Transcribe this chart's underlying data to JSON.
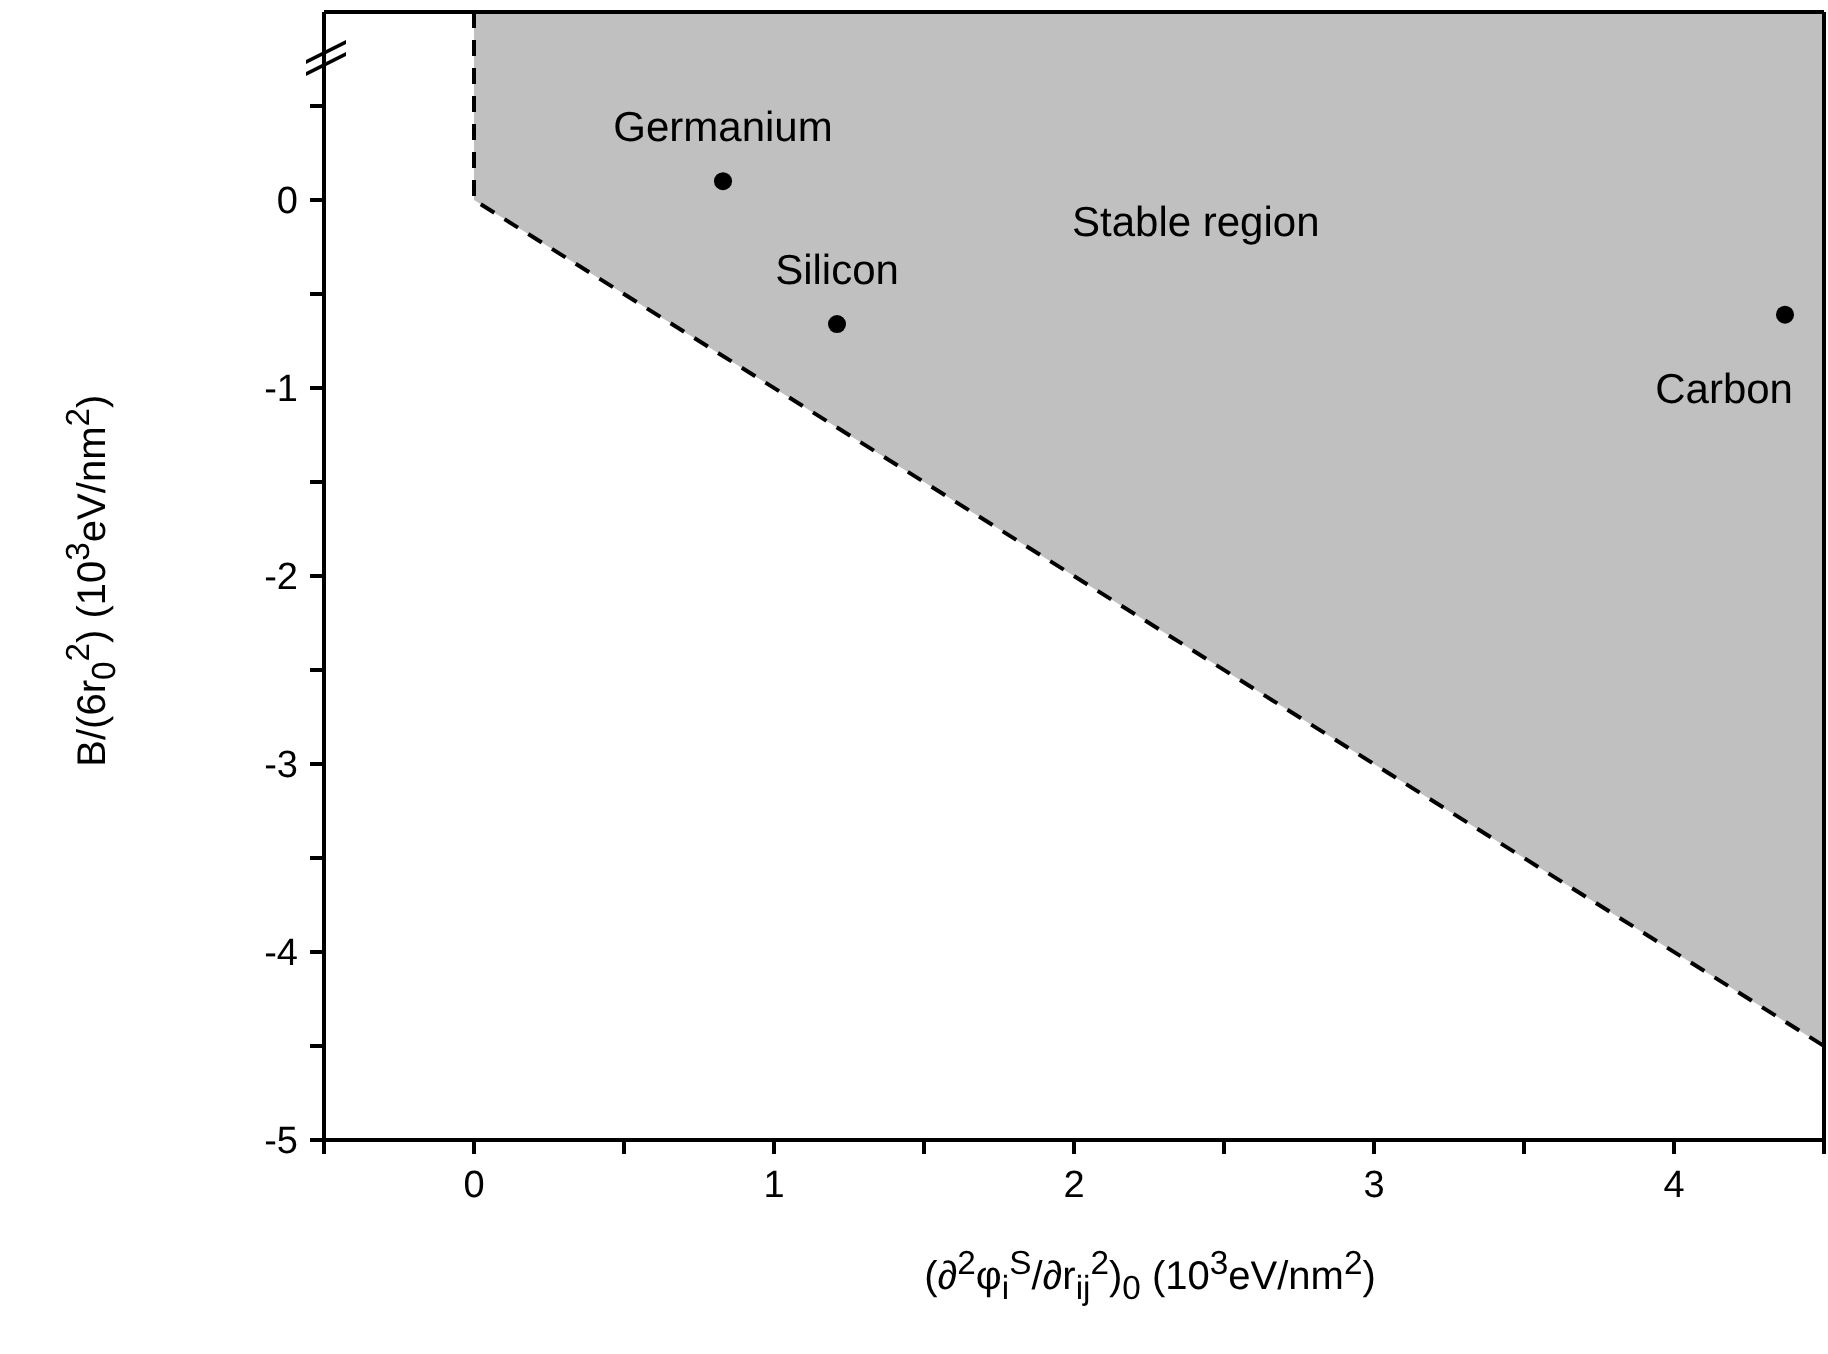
{
  "chart_data": {
    "type": "scatter",
    "xlabel": "(∂$^{2}$φ$_{i}$$^{S}$/∂r$_{ij}$$^{2}$)$_{0}$  (10$^{3}$eV/nm$^{2}$)",
    "ylabel": "B/(6r$_{0}$$^{2}$)  (10$^{3}$eV/nm$^{2}$)",
    "series": [
      {
        "type": "line",
        "color": "#000000",
        "line_style": "dashed",
        "marker": "none",
        "x": [
          0,
          0,
          4.5
        ],
        "values": [
          1,
          0,
          -4.5
        ]
      },
      {
        "color": "#000000",
        "marker": "circle",
        "x": [
          0.83,
          1.21,
          4.37
        ],
        "values": [
          0.1,
          -0.66,
          -0.61
        ]
      }
    ],
    "annotations": [
      {
        "text": "Germanium",
        "x": 0.83,
        "y": 0.1
      },
      {
        "text": "Silicon",
        "x": 1.21,
        "y": -0.66
      },
      {
        "text": "Carbon",
        "x": 4.37,
        "y": -0.61
      },
      "Stable region"
    ],
    "xlim": [
      -0.5,
      4.5
    ],
    "xticks": [
      {
        "value": -0.5,
        "label": null
      },
      0,
      {
        "value": 0.5,
        "label": null
      },
      1,
      {
        "value": 1.5,
        "label": null
      },
      2,
      {
        "value": 2.5,
        "label": null
      },
      3,
      {
        "value": 3.5,
        "label": null
      },
      4,
      {
        "value": 4.5,
        "label": null
      }
    ],
    "ylim": [
      -5,
      1
    ],
    "yticks": [
      -5,
      {
        "value": -4.5,
        "label": null
      },
      -4,
      {
        "value": -3.5,
        "label": null
      },
      -3,
      {
        "value": -2.5,
        "label": null
      },
      -2,
      {
        "value": -1.5,
        "label": null
      },
      -1,
      {
        "value": -0.5,
        "label": null
      },
      0,
      {
        "value": 0.5,
        "label": null
      }
    ],
    "grid": false
  }
}
